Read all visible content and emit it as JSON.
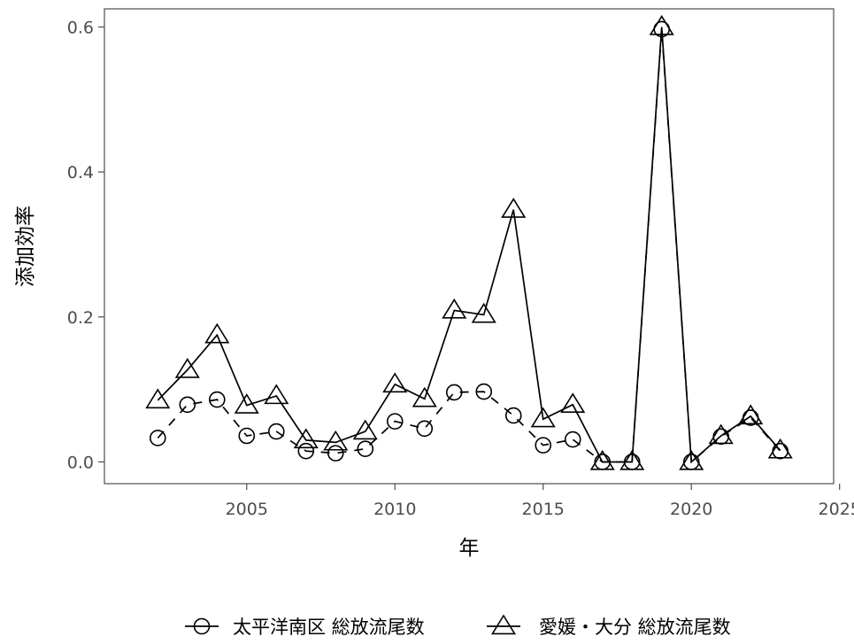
{
  "chart_data": {
    "type": "line",
    "xlabel": "年",
    "ylabel": "添加効率",
    "xlim": [
      2000.2,
      2024.8
    ],
    "ylim": [
      -0.03,
      0.625
    ],
    "x_ticks": [
      "2005",
      "2010",
      "2015",
      "2020",
      "2025"
    ],
    "y_ticks": [
      "0.0",
      "0.2",
      "0.4",
      "0.6"
    ],
    "grid": false,
    "legend_position": "bottom",
    "x": [
      2002,
      2003,
      2004,
      2005,
      2006,
      2007,
      2008,
      2009,
      2010,
      2011,
      2012,
      2013,
      2014,
      2015,
      2016,
      2017,
      2018,
      2019,
      2020,
      2021,
      2022,
      2023
    ],
    "series": [
      {
        "name": "太平洋南区 総放流尾数",
        "marker": "circle",
        "line": "dashed",
        "values": [
          0.033,
          0.079,
          0.086,
          0.036,
          0.042,
          0.015,
          0.012,
          0.018,
          0.056,
          0.046,
          0.096,
          0.097,
          0.064,
          0.023,
          0.031,
          0.0,
          0.0,
          0.597,
          0.0,
          0.035,
          0.061,
          0.015
        ]
      },
      {
        "name": "愛媛・大分 総放流尾数",
        "marker": "triangle",
        "line": "solid",
        "values": [
          0.085,
          0.127,
          0.175,
          0.078,
          0.091,
          0.03,
          0.027,
          0.042,
          0.107,
          0.087,
          0.209,
          0.203,
          0.348,
          0.059,
          0.079,
          0.0,
          0.0,
          0.6,
          0.0,
          0.036,
          0.063,
          0.016
        ]
      }
    ],
    "colors": {
      "line": "#000000",
      "axis": "#4d4d4d",
      "background": "#ffffff"
    }
  }
}
